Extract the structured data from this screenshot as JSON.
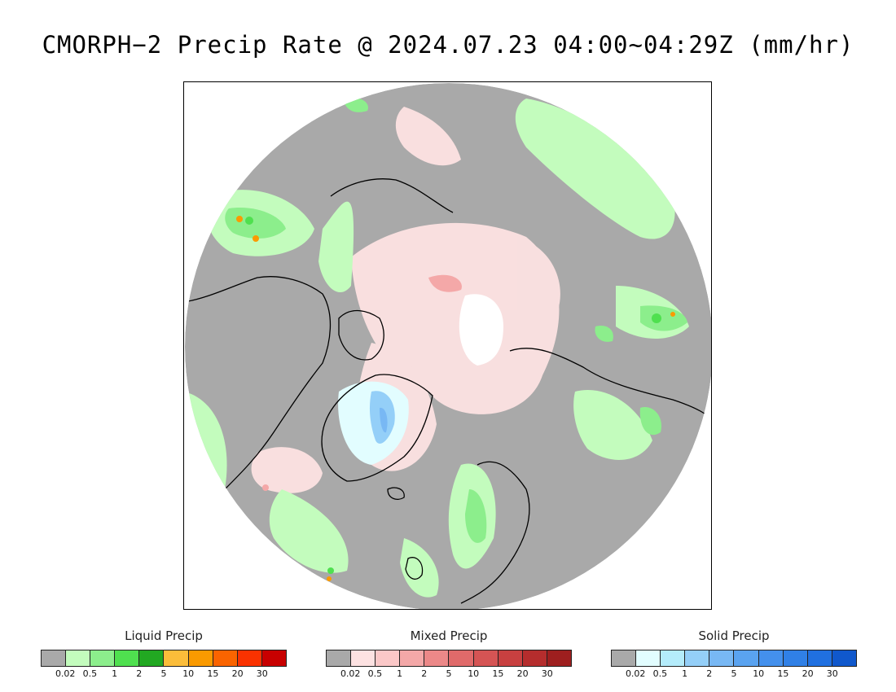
{
  "title": "CMORPH−2 Precip Rate @ 2024.07.23 04:00~04:29Z (mm/hr)",
  "legends": [
    {
      "title": "Liquid Precip",
      "colors": [
        "#a9a9a9",
        "#c3fcbd",
        "#8cee8c",
        "#4fe04f",
        "#22a822",
        "#fbbd3a",
        "#fa9a00",
        "#fa6400",
        "#fa3200",
        "#c80000"
      ],
      "ticks": [
        "0.02",
        "0.5",
        "1",
        "2",
        "5",
        "10",
        "15",
        "20",
        "30"
      ]
    },
    {
      "title": "Mixed Precip",
      "colors": [
        "#a9a9a9",
        "#fde2e2",
        "#fbc8c8",
        "#f4a8a8",
        "#ec8888",
        "#e06a6a",
        "#d55454",
        "#c84040",
        "#b52d2d",
        "#9e1f1f"
      ],
      "ticks": [
        "0.02",
        "0.5",
        "1",
        "2",
        "5",
        "10",
        "15",
        "20",
        "30"
      ]
    },
    {
      "title": "Solid Precip",
      "colors": [
        "#a9a9a9",
        "#e2fdff",
        "#b4ecfb",
        "#94cff8",
        "#78b8f4",
        "#5aa3f0",
        "#4490ec",
        "#3080e6",
        "#2070e0",
        "#1058cc"
      ],
      "ticks": [
        "0.02",
        "0.5",
        "1",
        "2",
        "5",
        "10",
        "15",
        "20",
        "30"
      ]
    }
  ],
  "map": {
    "projection": "polar stereographic, north pole",
    "background_color": "#a9a9a9"
  }
}
